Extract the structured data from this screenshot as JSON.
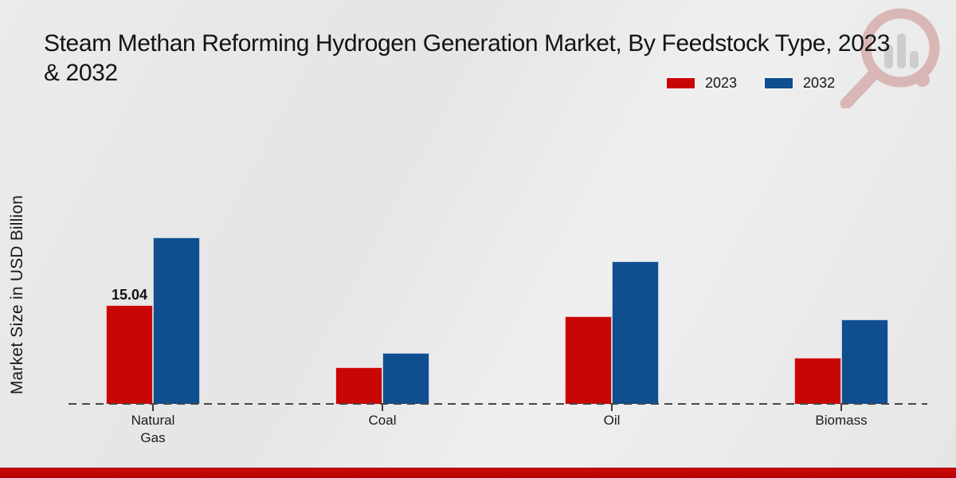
{
  "title": {
    "line1": "Steam Methan Reforming Hydrogen Generation Market, By Feedstock Type, 2023",
    "line2": "& 2032"
  },
  "y_axis_label": "Market Size in USD Billion",
  "legend": {
    "items": [
      {
        "label": "2023",
        "color": "#c90606"
      },
      {
        "label": "2032",
        "color": "#0f4e8f"
      }
    ]
  },
  "chart_data": {
    "type": "bar",
    "title": "Steam Methan Reforming Hydrogen Generation Market, By Feedstock Type, 2023 & 2032",
    "xlabel": "",
    "ylabel": "Market Size in USD Billion",
    "categories": [
      "Natural Gas",
      "Coal",
      "Oil",
      "Biomass"
    ],
    "series": [
      {
        "name": "2023",
        "color": "#c90606",
        "values": [
          15.04,
          5.6,
          13.3,
          7.0
        ]
      },
      {
        "name": "2032",
        "color": "#0f4e8f",
        "values": [
          25.4,
          7.8,
          21.7,
          12.9
        ]
      }
    ],
    "annotations": [
      {
        "category": "Natural Gas",
        "series": "2023",
        "text": "15.04"
      }
    ],
    "ylim": [
      0,
      28
    ],
    "grid": false,
    "legend_position": "top-right",
    "baseline_style": "dashed",
    "y_ticks_visible": false
  },
  "colors": {
    "background": "#e9e9e9",
    "footer_band": "#b90505",
    "baseline": "#474747",
    "watermark_red": "#b64a4a",
    "watermark_gray": "#8f8f8f"
  }
}
